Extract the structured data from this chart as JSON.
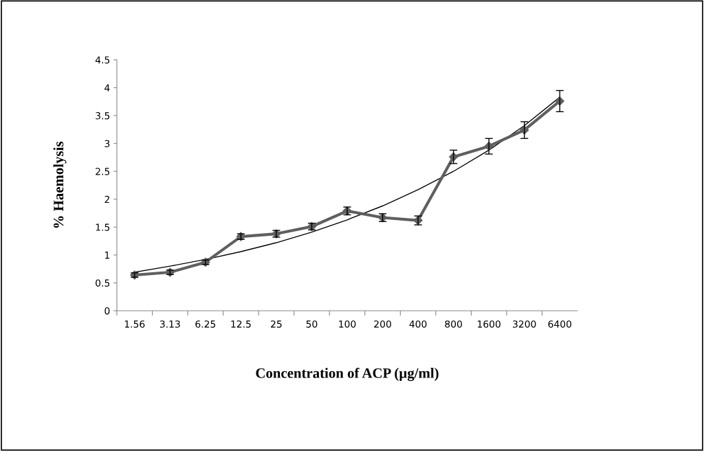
{
  "chart_data": {
    "type": "line",
    "xlabel": "Concentration of ACP (µg/ml)",
    "ylabel": "% Haemolysis",
    "categories": [
      "1.56",
      "3.13",
      "6.25",
      "12.5",
      "25",
      "50",
      "100",
      "200",
      "400",
      "800",
      "1600",
      "3200",
      "6400"
    ],
    "series": [
      {
        "color": "#5f5f5f",
        "marker": "diamond",
        "line_style": "solid",
        "values": [
          0.64,
          0.69,
          0.87,
          1.33,
          1.38,
          1.51,
          1.79,
          1.67,
          1.62,
          2.76,
          2.95,
          3.24,
          3.76
        ],
        "errors": [
          0.04,
          0.04,
          0.04,
          0.05,
          0.06,
          0.06,
          0.07,
          0.07,
          0.08,
          0.12,
          0.14,
          0.15,
          0.19
        ]
      },
      {
        "color": "#000000",
        "marker": "none",
        "line_style": "solid",
        "values": [
          0.69,
          0.8,
          0.92,
          1.06,
          1.22,
          1.41,
          1.63,
          1.88,
          2.17,
          2.5,
          2.88,
          3.32,
          3.83
        ]
      }
    ],
    "ylim": [
      0,
      4.5
    ],
    "yticks": [
      0,
      0.5,
      1,
      1.5,
      2,
      2.5,
      3,
      3.5,
      4,
      4.5
    ],
    "grid": false,
    "legend": false
  }
}
